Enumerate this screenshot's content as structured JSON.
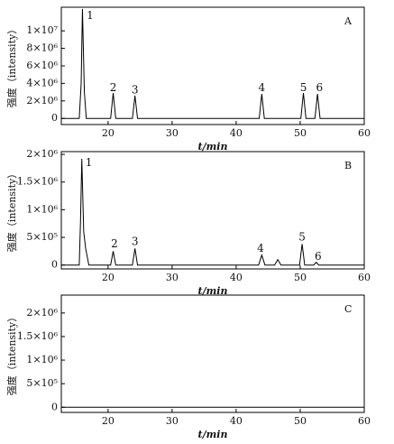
{
  "chart_data": [
    {
      "type": "line",
      "panel_label": "A",
      "y_label": "强度（intensity）",
      "x_label": "t/min",
      "xlim": [
        12.7,
        60
      ],
      "xticks": [
        20,
        30,
        40,
        50,
        60
      ],
      "ylim": [
        -700000,
        12700000
      ],
      "yticks": [
        0,
        {
          "value": 2000000,
          "label": "2×10⁶"
        },
        {
          "value": 4000000,
          "label": "4×10⁶"
        },
        {
          "value": 6000000,
          "label": "6×10⁶"
        },
        {
          "value": 8000000,
          "label": "8×10⁶"
        },
        {
          "value": 10000000,
          "label": "1×10⁷"
        }
      ],
      "series": [
        {
          "color": "#000000",
          "x": [
            12.7,
            15.5,
            15.8,
            16.0,
            16.3,
            16.6,
            20.4,
            20.8,
            21.2,
            23.8,
            24.2,
            24.6,
            43.6,
            44.0,
            44.4,
            50.1,
            50.5,
            50.9,
            52.3,
            52.7,
            53.1,
            60
          ],
          "values": [
            0,
            0,
            4000000,
            12500000,
            3000000,
            0,
            0,
            2900000,
            0,
            0,
            2600000,
            0,
            0,
            2800000,
            0,
            0,
            2900000,
            0,
            0,
            2800000,
            0,
            0
          ]
        }
      ],
      "annotations": [
        {
          "text": "1",
          "x": 17.2,
          "y": 11700000
        },
        {
          "text": "2",
          "x": 20.8,
          "y": 3500000
        },
        {
          "text": "3",
          "x": 24.2,
          "y": 3200000
        },
        {
          "text": "4",
          "x": 44.0,
          "y": 3500000
        },
        {
          "text": "5",
          "x": 50.5,
          "y": 3500000
        },
        {
          "text": "6",
          "x": 53.0,
          "y": 3500000
        }
      ]
    },
    {
      "type": "line",
      "panel_label": "B",
      "y_label": "强度（intensity）",
      "x_label": "t/min",
      "xlim": [
        12.7,
        60
      ],
      "xticks": [
        20,
        30,
        40,
        50,
        60
      ],
      "ylim": [
        -70000,
        2050000
      ],
      "yticks": [
        0,
        {
          "value": 500000,
          "label": "5×10⁵"
        },
        {
          "value": 1000000,
          "label": "1×10⁶"
        },
        {
          "value": 1500000,
          "label": "1.5×10⁶"
        },
        {
          "value": 2000000,
          "label": "2×10⁶"
        }
      ],
      "series": [
        {
          "color": "#000000",
          "x": [
            12.7,
            15.5,
            15.7,
            15.9,
            16.2,
            16.5,
            17,
            20.4,
            20.8,
            21.2,
            23.8,
            24.2,
            24.6,
            43.5,
            44,
            44.5,
            46,
            46.5,
            47,
            49.9,
            50.3,
            50.7,
            52.1,
            52.5,
            52.9,
            60
          ],
          "values": [
            0,
            0,
            800000,
            1920000,
            600000,
            300000,
            0,
            0,
            250000,
            0,
            0,
            300000,
            0,
            0,
            180000,
            0,
            0,
            100000,
            0,
            0,
            380000,
            0,
            0,
            50000,
            0,
            0
          ]
        }
      ],
      "annotations": [
        {
          "text": "1",
          "x": 17.0,
          "y": 1850000
        },
        {
          "text": "2",
          "x": 21.0,
          "y": 380000
        },
        {
          "text": "3",
          "x": 24.2,
          "y": 420000
        },
        {
          "text": "4",
          "x": 43.8,
          "y": 300000
        },
        {
          "text": "5",
          "x": 50.3,
          "y": 500000
        },
        {
          "text": "6",
          "x": 52.8,
          "y": 150000
        }
      ]
    },
    {
      "type": "line",
      "panel_label": "C",
      "y_label": "强度（intensity）",
      "x_label": "t/min",
      "xlim": [
        12.7,
        60
      ],
      "xticks": [
        20,
        30,
        40,
        50,
        60
      ],
      "ylim": [
        -110000,
        2380000
      ],
      "yticks": [
        0,
        {
          "value": 500000,
          "label": "5×10⁵"
        },
        {
          "value": 1000000,
          "label": "1×10⁶"
        },
        {
          "value": 1500000,
          "label": "1.5×10⁶"
        },
        {
          "value": 2000000,
          "label": "2×10⁶"
        }
      ],
      "series": [
        {
          "color": "#000000",
          "x": [
            12.7,
            60
          ],
          "values": [
            0,
            0
          ]
        }
      ],
      "annotations": []
    }
  ]
}
